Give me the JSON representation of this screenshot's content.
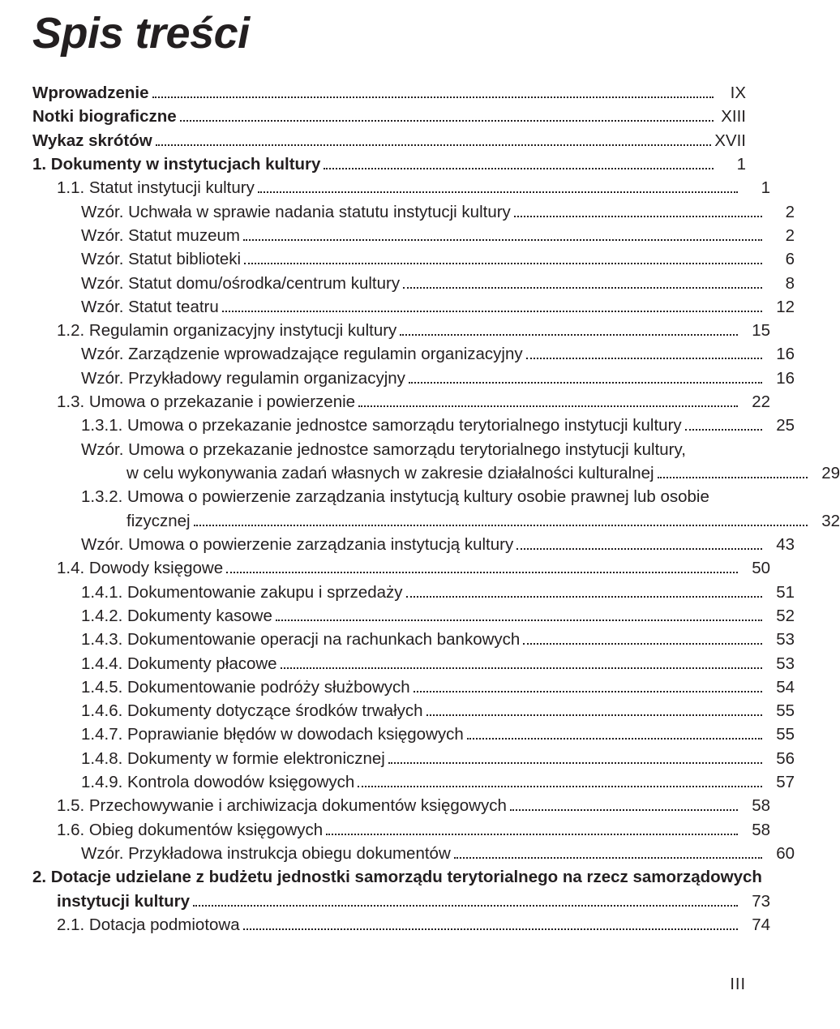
{
  "title": "Spis treści",
  "footer": "III",
  "entries": [
    {
      "label": "Wprowadzenie",
      "page": "IX",
      "indent": 0,
      "bold": true
    },
    {
      "label": "Notki biograficzne",
      "page": "XIII",
      "indent": 0,
      "bold": true
    },
    {
      "label": "Wykaz skrótów",
      "page": "XVII",
      "indent": 0,
      "bold": true
    },
    {
      "label": "1. Dokumenty w instytucjach kultury",
      "page": "1",
      "indent": 0,
      "bold": true
    },
    {
      "label": "1.1. Statut instytucji kultury",
      "page": "1",
      "indent": 1,
      "bold": false
    },
    {
      "label": "Wzór. Uchwała w sprawie nadania statutu instytucji kultury",
      "page": "2",
      "indent": 2,
      "bold": false
    },
    {
      "label": "Wzór. Statut muzeum",
      "page": "2",
      "indent": 2,
      "bold": false
    },
    {
      "label": "Wzór. Statut biblioteki",
      "page": "6",
      "indent": 2,
      "bold": false
    },
    {
      "label": "Wzór. Statut domu/ośrodka/centrum kultury",
      "page": "8",
      "indent": 2,
      "bold": false
    },
    {
      "label": "Wzór. Statut teatru",
      "page": "12",
      "indent": 2,
      "bold": false
    },
    {
      "label": "1.2. Regulamin organizacyjny instytucji kultury",
      "page": "15",
      "indent": 1,
      "bold": false
    },
    {
      "label": "Wzór. Zarządzenie wprowadzające regulamin organizacyjny",
      "page": "16",
      "indent": 2,
      "bold": false
    },
    {
      "label": "Wzór. Przykładowy regulamin organizacyjny",
      "page": "16",
      "indent": 2,
      "bold": false
    },
    {
      "label": "1.3. Umowa o przekazanie i powierzenie",
      "page": "22",
      "indent": 1,
      "bold": false
    },
    {
      "label": "1.3.1. Umowa o przekazanie jednostce samorządu terytorialnego instytucji kultury",
      "page": "25",
      "indent": 2,
      "bold": false
    },
    {
      "label_a": "Wzór. Umowa o przekazanie jednostce samorządu terytorialnego instytucji kultury,",
      "label_b": "w celu wykonywania zadań własnych w zakresie działalności kulturalnej",
      "page": "29",
      "indent": 2,
      "bold": false,
      "multiline": true
    },
    {
      "label_a": "1.3.2. Umowa o powierzenie zarządzania instytucją kultury osobie prawnej lub osobie",
      "label_b": "fizycznej",
      "page": "32",
      "indent": 2,
      "bold": false,
      "multiline": true
    },
    {
      "label": "Wzór. Umowa o powierzenie zarządzania instytucją kultury",
      "page": "43",
      "indent": 2,
      "bold": false
    },
    {
      "label": "1.4. Dowody księgowe",
      "page": "50",
      "indent": 1,
      "bold": false
    },
    {
      "label": "1.4.1. Dokumentowanie zakupu i sprzedaży",
      "page": "51",
      "indent": 2,
      "bold": false
    },
    {
      "label": "1.4.2. Dokumenty kasowe",
      "page": "52",
      "indent": 2,
      "bold": false
    },
    {
      "label": "1.4.3. Dokumentowanie operacji na rachunkach bankowych",
      "page": "53",
      "indent": 2,
      "bold": false
    },
    {
      "label": "1.4.4. Dokumenty płacowe",
      "page": "53",
      "indent": 2,
      "bold": false
    },
    {
      "label": "1.4.5. Dokumentowanie podróży służbowych",
      "page": "54",
      "indent": 2,
      "bold": false
    },
    {
      "label": "1.4.6. Dokumenty dotyczące środków trwałych",
      "page": "55",
      "indent": 2,
      "bold": false
    },
    {
      "label": "1.4.7. Poprawianie błędów w dowodach księgowych",
      "page": "55",
      "indent": 2,
      "bold": false
    },
    {
      "label": "1.4.8. Dokumenty w formie elektronicznej",
      "page": "56",
      "indent": 2,
      "bold": false
    },
    {
      "label": "1.4.9. Kontrola dowodów księgowych",
      "page": "57",
      "indent": 2,
      "bold": false
    },
    {
      "label": "1.5. Przechowywanie i archiwizacja dokumentów księgowych",
      "page": "58",
      "indent": 1,
      "bold": false
    },
    {
      "label": "1.6. Obieg dokumentów księgowych",
      "page": "58",
      "indent": 1,
      "bold": false
    },
    {
      "label": "Wzór. Przykładowa instrukcja obiegu dokumentów",
      "page": "60",
      "indent": 2,
      "bold": false
    },
    {
      "label_a": "2. Dotacje udzielane z budżetu jednostki samorządu terytorialnego na rzecz samorządowych",
      "label_b": "instytucji kultury",
      "page": "73",
      "indent": 0,
      "bold": true,
      "multiline": true,
      "hang_indent": 1
    },
    {
      "label": "2.1. Dotacja podmiotowa",
      "page": "74",
      "indent": 1,
      "bold": false
    }
  ]
}
